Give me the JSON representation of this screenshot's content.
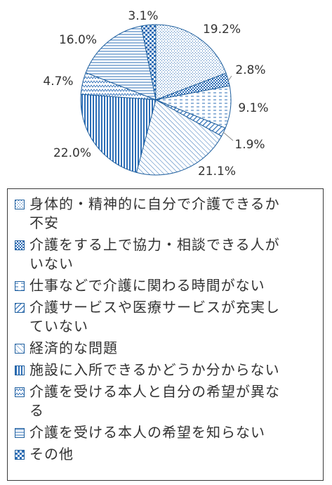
{
  "chart_data": {
    "type": "pie",
    "categories": [
      "身体的・精神的に自分で介護できるか不安",
      "介護をする上で協力・相談できる人がいない",
      "仕事などで介護に関わる時間がない",
      "介護サービスや医療サービスが充実していない",
      "経済的な問題",
      "施設に入所できるかどうか分からない",
      "介護を受ける本人と自分の希望が異なる",
      "介護を受ける本人の希望を知らない",
      "その他"
    ],
    "values": [
      19.2,
      2.8,
      9.1,
      1.9,
      21.1,
      22.0,
      4.7,
      16.0,
      3.1
    ],
    "data_labels": [
      "19.2%",
      "2.8%",
      "9.1%",
      "1.9%",
      "21.1%",
      "22.0%",
      "4.7%",
      "16.0%",
      "3.1%"
    ],
    "legend_placement": "bottom",
    "colors": {
      "stroke": "#1f5f9e",
      "dark": "#2e6fb7",
      "light": "#ffffff"
    }
  },
  "legend": {
    "items": [
      {
        "label_line1": "身体的・精神的に自分で介護できるか",
        "label_line2": "不安"
      },
      {
        "label_line1": "介護をする上で協力・相談できる人が",
        "label_line2": "いない"
      },
      {
        "label_line1": "仕事などで介護に関わる時間がない",
        "label_line2": ""
      },
      {
        "label_line1": "介護サービスや医療サービスが充実し",
        "label_line2": "ていない"
      },
      {
        "label_line1": "経済的な問題",
        "label_line2": ""
      },
      {
        "label_line1": "施設に入所できるかどうか分からない",
        "label_line2": ""
      },
      {
        "label_line1": "介護を受ける本人と自分の希望が異な",
        "label_line2": "る"
      },
      {
        "label_line1": "介護を受ける本人の希望を知らない",
        "label_line2": ""
      },
      {
        "label_line1": "その他",
        "label_line2": ""
      }
    ]
  }
}
